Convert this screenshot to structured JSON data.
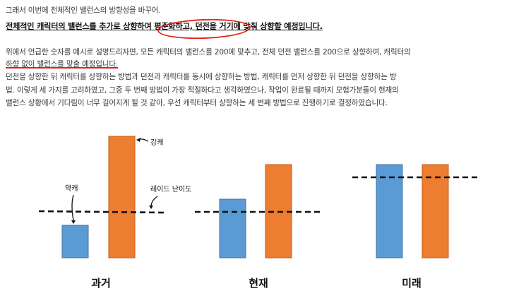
{
  "text": {
    "line1": "그래서 이번에 전체적인 밸런스의 방향성을 바꾸어.",
    "line2": "전체적인 캐릭터의 밸런스를 추가로 상향하여 평준화하고, 던전을 거기에 맞춰 상향할 예정입니다.",
    "line3": "위에서 언급한 숫자를 예시로 설명드리자면, 모든 캐릭터의 밸런스를 200에 맞추고, 전체 던전 밸런스를 200으로 상향하여, 캐릭터의",
    "line4": "하향 없이 밸런스를 맞출 예정입니다.",
    "line5": "던전을 상향한 뒤 캐릭터를 상향하는 방법과 던전과 캐릭터를 동시에 상향하는 방법, 캐릭터를 먼저 상향한 뒤 던전을 상향하는 방",
    "line6": "법. 이렇게 세 가지를 고려하였고, 그중 두 번째 방법이 가장 적절하다고 생각하였으나, 작업이 완료될 때까지 모험가분들이 현재의",
    "line7": "밸런스 상황에서 기다림이 너무 길어지게 될 것 같아, 우선 캐릭터부터 상향하는 세 번째 방법으로 진행하기로 결정하였습니다."
  },
  "chart_data": [
    {
      "type": "bar",
      "title": "과거",
      "series": [
        {
          "name": "약캐",
          "color": "#5b9bd5",
          "value": 46
        },
        {
          "name": "강캐",
          "color": "#ed7d31",
          "value": 172
        }
      ],
      "difficulty_line": 66,
      "annotations": [
        "강캐",
        "약캐",
        "레이드 난이도"
      ]
    },
    {
      "type": "bar",
      "title": "현재",
      "series": [
        {
          "color": "#5b9bd5",
          "value": 83
        },
        {
          "color": "#ed7d31",
          "value": 132
        }
      ],
      "difficulty_line": 65
    },
    {
      "type": "bar",
      "title": "미래",
      "series": [
        {
          "color": "#5b9bd5",
          "value": 132
        },
        {
          "color": "#ed7d31",
          "value": 132
        }
      ],
      "difficulty_line": 114
    }
  ],
  "colors": {
    "blue": "#5b9bd5",
    "orange": "#ed7d31",
    "highlight": "#e8231f"
  }
}
